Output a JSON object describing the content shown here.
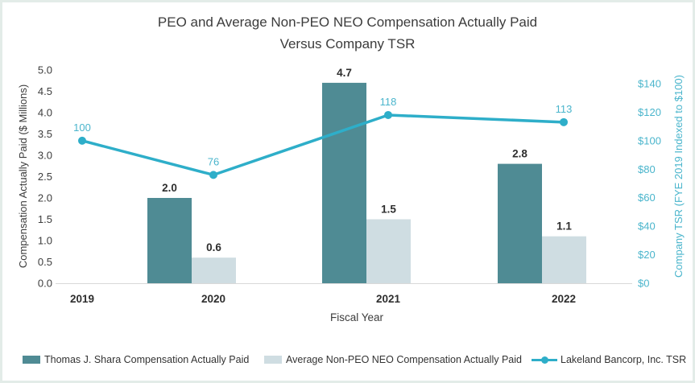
{
  "title": {
    "line1": "PEO and Average Non-PEO NEO Compensation Actually Paid",
    "line2": "Versus Company TSR"
  },
  "chart_data": {
    "type": "bar+line",
    "title": "PEO and Average Non-PEO NEO Compensation Actually Paid Versus Company TSR",
    "title_lines": [
      "PEO and Average Non-PEO NEO Compensation Actually Paid",
      "Versus Company TSR"
    ],
    "categories": [
      "2019",
      "2020",
      "2021",
      "2022"
    ],
    "xlabel": "Fiscal Year",
    "grid": false,
    "legend_position": "bottom",
    "axes": {
      "left": {
        "label": "Compensation Actually Paid ($ Millions)",
        "min": 0,
        "max": 5,
        "step": 0.5,
        "ticks": [
          "0.0",
          "0.5",
          "1.0",
          "1.5",
          "2.0",
          "2.5",
          "3.0",
          "3.5",
          "4.0",
          "4.5",
          "5.0"
        ]
      },
      "right": {
        "label": "Company TSR (FYE 2019 Indexed to $100)",
        "min": 0,
        "max": 140,
        "step": 20,
        "ticks": [
          "$0",
          "$20",
          "$40",
          "$60",
          "$80",
          "$100",
          "$120",
          "$140"
        ]
      }
    },
    "series": [
      {
        "name": "Thomas J. Shara Compensation Actually Paid",
        "type": "bar",
        "axis": "left",
        "values": [
          null,
          2.0,
          4.7,
          2.8
        ],
        "labels": [
          "",
          "2.0",
          "4.7",
          "2.8"
        ]
      },
      {
        "name": "Average Non-PEO NEO Compensation Actually Paid",
        "type": "bar",
        "axis": "left",
        "values": [
          null,
          0.6,
          1.5,
          1.1
        ],
        "labels": [
          "",
          "0.6",
          "1.5",
          "1.1"
        ]
      },
      {
        "name": "Lakeland Bancorp, Inc. TSR",
        "type": "line",
        "axis": "right",
        "values": [
          100,
          76,
          118,
          113
        ],
        "labels": [
          "100",
          "76",
          "118",
          "113"
        ]
      }
    ]
  },
  "colors": {
    "peo_bar": "#4F8B94",
    "avg_bar": "#CFDDE2",
    "tsr_line": "#2EAEC9",
    "teal_text": "#4AB5CC",
    "dark_text": "#3C3C3C",
    "axis_line": "#D9D9D9",
    "card_border": "#E3ECE8"
  }
}
